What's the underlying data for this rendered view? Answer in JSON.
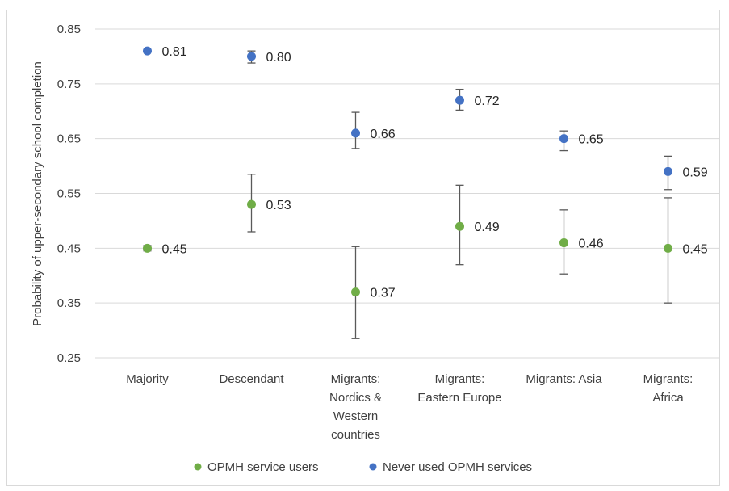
{
  "chart_data": {
    "type": "scatter",
    "title": "",
    "xlabel": "",
    "ylabel": "Probability of upper-secondary school completion",
    "ylim": [
      0.25,
      0.85
    ],
    "yticks": [
      "0.25",
      "0.35",
      "0.45",
      "0.55",
      "0.65",
      "0.75",
      "0.85"
    ],
    "grid": "horizontal",
    "legend_position": "bottom",
    "categories": [
      [
        "Majority"
      ],
      [
        "Descendant"
      ],
      [
        "Migrants:",
        "Nordics &",
        "Western",
        "countries"
      ],
      [
        "Migrants:",
        "Eastern Europe"
      ],
      [
        "Migrants: Asia"
      ],
      [
        "Migrants:",
        "Africa"
      ]
    ],
    "series": [
      {
        "name": "OPMH service users",
        "color": "#70ad47",
        "values": [
          0.45,
          0.53,
          0.37,
          0.49,
          0.46,
          0.45
        ],
        "labels": [
          "0.45",
          "0.53",
          "0.37",
          "0.49",
          "0.46",
          "0.45"
        ],
        "error_low": [
          0.445,
          0.48,
          0.285,
          0.42,
          0.403,
          0.35
        ],
        "error_high": [
          0.455,
          0.585,
          0.453,
          0.565,
          0.52,
          0.542
        ]
      },
      {
        "name": "Never used OPMH services",
        "color": "#4472c4",
        "values": [
          0.81,
          0.8,
          0.66,
          0.72,
          0.65,
          0.59
        ],
        "labels": [
          "0.81",
          "0.80",
          "0.66",
          "0.72",
          "0.65",
          "0.59"
        ],
        "error_low": [
          0.81,
          0.788,
          0.632,
          0.702,
          0.628,
          0.557
        ],
        "error_high": [
          0.81,
          0.81,
          0.698,
          0.74,
          0.664,
          0.618
        ]
      }
    ]
  }
}
